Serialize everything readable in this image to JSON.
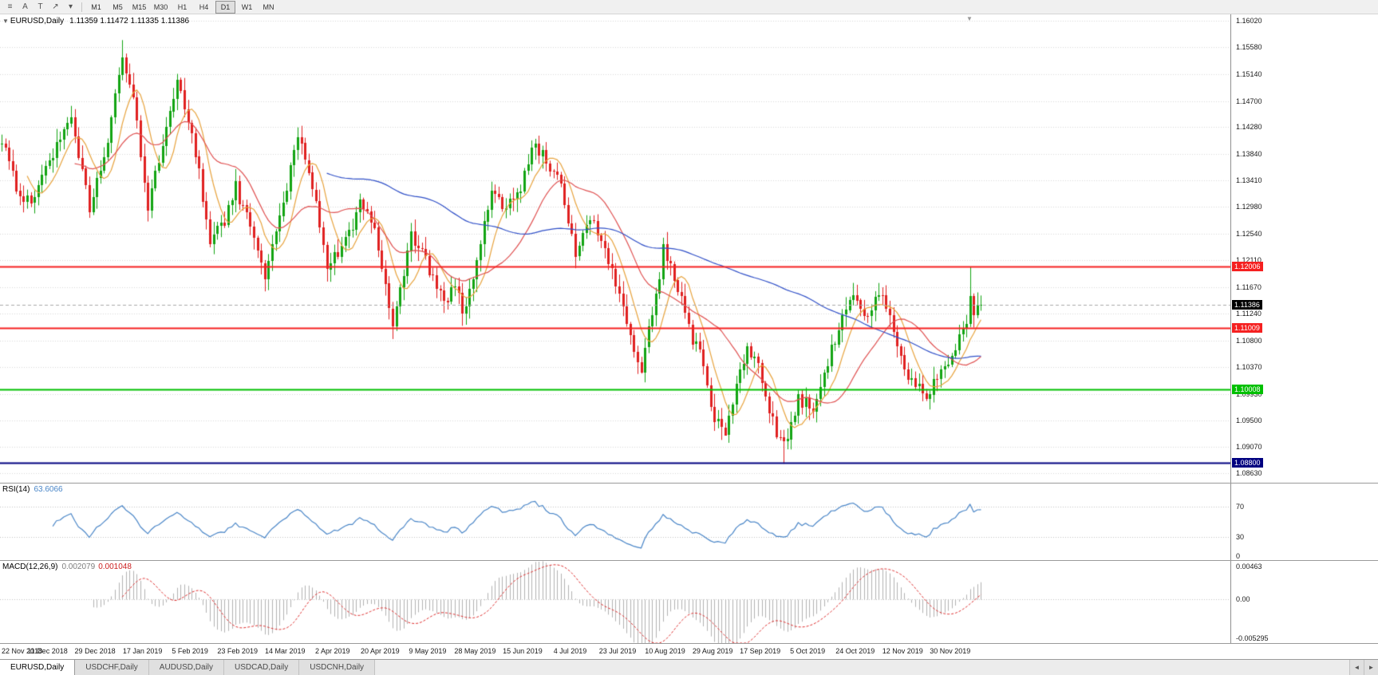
{
  "toolbar": {
    "icons": [
      {
        "name": "chart-list-icon",
        "glyph": "≡"
      },
      {
        "name": "cursor-tool-icon",
        "glyph": "A"
      },
      {
        "name": "text-tool-icon",
        "glyph": "T"
      },
      {
        "name": "trendline-tool-icon",
        "glyph": "↗"
      },
      {
        "name": "dropdown-caret-icon",
        "glyph": "▾"
      }
    ],
    "timeframes": [
      "M1",
      "M5",
      "M15",
      "M30",
      "H1",
      "H4",
      "D1",
      "W1",
      "MN"
    ],
    "active_timeframe": "D1"
  },
  "chart": {
    "symbol_label": "EURUSD,Daily",
    "ohlc": "1.11359 1.11472 1.11335 1.11386",
    "dropdown_glyph": "▼",
    "shift_marker_glyph": "▼",
    "current_price": "1.11386",
    "price_axis_labels": [
      "1.16020",
      "1.15580",
      "1.15140",
      "1.14700",
      "1.14280",
      "1.13840",
      "1.13410",
      "1.12980",
      "1.12540",
      "1.12110",
      "1.11670",
      "1.11240",
      "1.10800",
      "1.10370",
      "1.09930",
      "1.09500",
      "1.09070",
      "1.08630"
    ],
    "hlines": [
      {
        "price": 1.12006,
        "label": "1.12006",
        "color": "#f52020",
        "width": 2
      },
      {
        "price": 1.11009,
        "label": "1.11009",
        "color": "#f52020",
        "width": 2
      },
      {
        "price": 1.10008,
        "label": "1.10008",
        "color": "#00c000",
        "width": 2
      },
      {
        "price": 1.088,
        "label": "1.08800",
        "color": "#000080",
        "width": 2
      }
    ]
  },
  "rsi": {
    "name": "RSI(14)",
    "value": "63.6066",
    "period": 14,
    "color": "#4a86c8",
    "levels": [
      {
        "value": 70,
        "label": "70"
      },
      {
        "value": 30,
        "label": "30"
      },
      {
        "value": 0,
        "label": "0"
      }
    ]
  },
  "macd": {
    "name": "MACD(12,26,9)",
    "value_main": "0.002079",
    "value_signal": "0.001048",
    "fast": 12,
    "slow": 26,
    "signal": 9,
    "scale_top": "0.00463",
    "scale_zero": "0.00",
    "scale_bottom": "-0.005295",
    "range_max": 0.00463,
    "range_min": -0.005295,
    "hist_color": "#b2b2b2",
    "signal_color": "#e03030"
  },
  "date_axis": {
    "labels": [
      "22 Nov 2018",
      "11 Dec 2018",
      "29 Dec 2018",
      "17 Jan 2019",
      "5 Feb 2019",
      "23 Feb 2019",
      "14 Mar 2019",
      "2 Apr 2019",
      "20 Apr 2019",
      "9 May 2019",
      "28 May 2019",
      "15 Jun 2019",
      "4 Jul 2019",
      "23 Jul 2019",
      "10 Aug 2019",
      "29 Aug 2019",
      "17 Sep 2019",
      "5 Oct 2019",
      "24 Oct 2019",
      "12 Nov 2019",
      "30 Nov 2019"
    ],
    "candles_per_label": 13
  },
  "tabs": {
    "items": [
      "EURUSD,Daily",
      "USDCHF,Daily",
      "AUDUSD,Daily",
      "USDCAD,Daily",
      "USDCNH,Daily"
    ],
    "active_index": 0,
    "scroll_icons": {
      "left": "◄",
      "right": "►"
    }
  },
  "chart_data": {
    "type": "candlestick",
    "symbol": "EURUSD",
    "timeframe": "Daily",
    "candle_count": 269,
    "x_spacing": 4.58,
    "body_width": 3,
    "price_min": 1.0848,
    "price_max": 1.1612,
    "hard_min": 1.0879,
    "hard_max": 1.157,
    "last_close": 1.11386,
    "noise": 0.0024,
    "wick": 0.0018,
    "seed": 20191213,
    "up_color": "#12a412",
    "down_color": "#e02020",
    "grid_color": "#d8d8d8",
    "bid_line_color": "#a8a8a8",
    "anchors": [
      [
        0,
        1.14
      ],
      [
        4,
        1.1335
      ],
      [
        8,
        1.13
      ],
      [
        12,
        1.137
      ],
      [
        16,
        1.141
      ],
      [
        19,
        1.144
      ],
      [
        24,
        1.13
      ],
      [
        28,
        1.138
      ],
      [
        33,
        1.1545
      ],
      [
        36,
        1.148
      ],
      [
        40,
        1.13
      ],
      [
        44,
        1.14
      ],
      [
        48,
        1.15
      ],
      [
        52,
        1.142
      ],
      [
        57,
        1.1245
      ],
      [
        61,
        1.127
      ],
      [
        64,
        1.133
      ],
      [
        68,
        1.126
      ],
      [
        72,
        1.1185
      ],
      [
        76,
        1.128
      ],
      [
        81,
        1.1415
      ],
      [
        85,
        1.133
      ],
      [
        89,
        1.1195
      ],
      [
        93,
        1.123
      ],
      [
        98,
        1.13
      ],
      [
        102,
        1.126
      ],
      [
        107,
        1.1115
      ],
      [
        112,
        1.125
      ],
      [
        116,
        1.121
      ],
      [
        121,
        1.1135
      ],
      [
        124,
        1.118
      ],
      [
        126,
        1.1115
      ],
      [
        130,
        1.121
      ],
      [
        134,
        1.1335
      ],
      [
        138,
        1.129
      ],
      [
        142,
        1.133
      ],
      [
        146,
        1.14
      ],
      [
        149,
        1.137
      ],
      [
        153,
        1.133
      ],
      [
        157,
        1.1215
      ],
      [
        161,
        1.128
      ],
      [
        166,
        1.121
      ],
      [
        171,
        1.111
      ],
      [
        175,
        1.1035
      ],
      [
        178,
        1.112
      ],
      [
        181,
        1.1225
      ],
      [
        184,
        1.119
      ],
      [
        188,
        1.1095
      ],
      [
        191,
        1.106
      ],
      [
        194,
        1.0965
      ],
      [
        198,
        1.0935
      ],
      [
        201,
        1.101
      ],
      [
        204,
        1.1075
      ],
      [
        207,
        1.104
      ],
      [
        209,
        1.099
      ],
      [
        212,
        1.093
      ],
      [
        214,
        1.0905
      ],
      [
        218,
        1.099
      ],
      [
        222,
        1.096
      ],
      [
        225,
        1.103
      ],
      [
        229,
        1.11
      ],
      [
        233,
        1.1165
      ],
      [
        237,
        1.112
      ],
      [
        240,
        1.116
      ],
      [
        243,
        1.111
      ],
      [
        245,
        1.1065
      ],
      [
        249,
        1.1015
      ],
      [
        253,
        1.099
      ],
      [
        256,
        1.1015
      ],
      [
        258,
        1.104
      ],
      [
        261,
        1.1075
      ],
      [
        263,
        1.1095
      ],
      [
        264,
        1.11
      ],
      [
        265,
        1.1155
      ],
      [
        266,
        1.113
      ],
      [
        267,
        1.1135
      ],
      [
        268,
        1.11386
      ]
    ],
    "wick_overrides": {
      "33": {
        "h": 1.157
      },
      "48": {
        "h": 1.1515
      },
      "175": {
        "l": 1.1026
      },
      "198": {
        "l": 1.0925
      },
      "214": {
        "l": 1.0879
      },
      "265": {
        "h": 1.12
      }
    },
    "moving_averages": [
      {
        "period": 8,
        "color": "#e8a33d"
      },
      {
        "period": 21,
        "color": "#e05050"
      },
      {
        "period": 90,
        "color": "#3050c8"
      }
    ]
  }
}
